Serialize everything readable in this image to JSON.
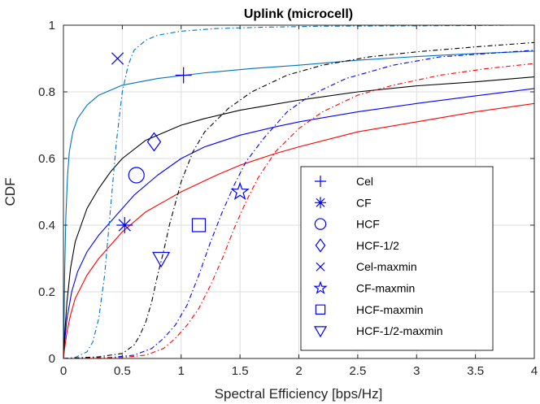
{
  "chart_data": {
    "type": "line",
    "title": "Uplink (microcell)",
    "xlabel": "Spectral Efficiency [bps/Hz]",
    "ylabel": "CDF",
    "xlim": [
      0,
      4
    ],
    "ylim": [
      0,
      1
    ],
    "xticks": [
      0,
      0.5,
      1,
      1.5,
      2,
      2.5,
      3,
      3.5,
      4
    ],
    "xtick_labels": [
      "0",
      "0.5",
      "1",
      "1.5",
      "2",
      "2.5",
      "3",
      "3.5",
      "4"
    ],
    "yticks": [
      0,
      0.2,
      0.4,
      0.6,
      0.8,
      1
    ],
    "ytick_labels": [
      "0",
      "0.2",
      "0.4",
      "0.6",
      "0.8",
      "1"
    ],
    "grid": true,
    "legend_position": "lower-right",
    "legend": [
      {
        "label": "Cel",
        "marker": "plus"
      },
      {
        "label": "CF",
        "marker": "asterisk"
      },
      {
        "label": "HCF",
        "marker": "circle"
      },
      {
        "label": "HCF-1/2",
        "marker": "diamond"
      },
      {
        "label": "Cel-maxmin",
        "marker": "x"
      },
      {
        "label": "CF-maxmin",
        "marker": "star"
      },
      {
        "label": "HCF-maxmin",
        "marker": "square"
      },
      {
        "label": "HCF-1/2-maxmin",
        "marker": "triangle-down"
      }
    ],
    "series": [
      {
        "name": "Cel",
        "color": "#0072bd",
        "dash": "solid",
        "points": [
          [
            0,
            0
          ],
          [
            0.005,
            0.1
          ],
          [
            0.01,
            0.25
          ],
          [
            0.02,
            0.42
          ],
          [
            0.035,
            0.55
          ],
          [
            0.05,
            0.62
          ],
          [
            0.08,
            0.68
          ],
          [
            0.12,
            0.72
          ],
          [
            0.2,
            0.76
          ],
          [
            0.3,
            0.79
          ],
          [
            0.5,
            0.82
          ],
          [
            0.8,
            0.84
          ],
          [
            1.2,
            0.857
          ],
          [
            1.6,
            0.87
          ],
          [
            2.0,
            0.88
          ],
          [
            2.5,
            0.895
          ],
          [
            3.0,
            0.906
          ],
          [
            3.5,
            0.915
          ],
          [
            4.0,
            0.922
          ]
        ],
        "marker": {
          "type": "plus",
          "x": 1.02,
          "y": 0.85
        }
      },
      {
        "name": "CF",
        "color": "#0000ff",
        "dash": "solid",
        "points": [
          [
            0,
            0
          ],
          [
            0.01,
            0.05
          ],
          [
            0.03,
            0.12
          ],
          [
            0.07,
            0.2
          ],
          [
            0.12,
            0.26
          ],
          [
            0.2,
            0.32
          ],
          [
            0.3,
            0.37
          ],
          [
            0.4,
            0.41
          ],
          [
            0.5,
            0.45
          ],
          [
            0.6,
            0.49
          ],
          [
            0.8,
            0.55
          ],
          [
            1.0,
            0.6
          ],
          [
            1.2,
            0.635
          ],
          [
            1.5,
            0.67
          ],
          [
            1.8,
            0.695
          ],
          [
            2.0,
            0.71
          ],
          [
            2.5,
            0.74
          ],
          [
            3.0,
            0.765
          ],
          [
            3.5,
            0.788
          ],
          [
            4.0,
            0.81
          ]
        ],
        "marker": {
          "type": "asterisk",
          "x": 0.52,
          "y": 0.4
        }
      },
      {
        "name": "HCF",
        "color": "#000000",
        "dash": "solid",
        "points": [
          [
            0,
            0
          ],
          [
            0.01,
            0.07
          ],
          [
            0.03,
            0.17
          ],
          [
            0.06,
            0.27
          ],
          [
            0.1,
            0.35
          ],
          [
            0.2,
            0.45
          ],
          [
            0.3,
            0.51
          ],
          [
            0.4,
            0.56
          ],
          [
            0.5,
            0.6
          ],
          [
            0.7,
            0.655
          ],
          [
            1.0,
            0.7
          ],
          [
            1.2,
            0.72
          ],
          [
            1.5,
            0.745
          ],
          [
            2.0,
            0.775
          ],
          [
            2.5,
            0.8
          ],
          [
            3.0,
            0.818
          ],
          [
            3.5,
            0.83
          ],
          [
            4.0,
            0.845
          ]
        ],
        "marker": {
          "type": "circle",
          "x": 0.62,
          "y": 0.55
        }
      },
      {
        "name": "HCF-1/2",
        "color": "#ff0000",
        "dash": "solid",
        "points": [
          [
            0,
            0
          ],
          [
            0.01,
            0.03
          ],
          [
            0.03,
            0.08
          ],
          [
            0.06,
            0.13
          ],
          [
            0.1,
            0.18
          ],
          [
            0.2,
            0.25
          ],
          [
            0.3,
            0.3
          ],
          [
            0.4,
            0.34
          ],
          [
            0.5,
            0.38
          ],
          [
            0.7,
            0.44
          ],
          [
            0.9,
            0.48
          ],
          [
            1.0,
            0.5
          ],
          [
            1.3,
            0.55
          ],
          [
            1.5,
            0.58
          ],
          [
            1.8,
            0.615
          ],
          [
            2.0,
            0.635
          ],
          [
            2.5,
            0.68
          ],
          [
            3.0,
            0.71
          ],
          [
            3.5,
            0.74
          ],
          [
            4.0,
            0.765
          ]
        ],
        "marker": {
          "type": "diamond",
          "x": 0.77,
          "y": 0.65
        }
      },
      {
        "name": "Cel-maxmin",
        "color": "#0072bd",
        "dash": "dashdot",
        "points": [
          [
            0,
            0
          ],
          [
            0.1,
            0.003
          ],
          [
            0.2,
            0.02
          ],
          [
            0.25,
            0.05
          ],
          [
            0.3,
            0.12
          ],
          [
            0.35,
            0.25
          ],
          [
            0.4,
            0.45
          ],
          [
            0.45,
            0.65
          ],
          [
            0.5,
            0.8
          ],
          [
            0.55,
            0.88
          ],
          [
            0.6,
            0.925
          ],
          [
            0.7,
            0.955
          ],
          [
            0.8,
            0.97
          ],
          [
            1.0,
            0.982
          ],
          [
            1.3,
            0.99
          ],
          [
            1.7,
            0.994
          ],
          [
            2.2,
            0.997
          ],
          [
            3.0,
            0.998
          ],
          [
            3.5,
            0.999
          ],
          [
            3.85,
            1.0
          ]
        ],
        "marker": {
          "type": "x",
          "x": 0.46,
          "y": 0.9
        }
      },
      {
        "name": "CF-maxmin",
        "color": "#0000ff",
        "dash": "dashdot",
        "points": [
          [
            0,
            0
          ],
          [
            0.4,
            0.003
          ],
          [
            0.6,
            0.01
          ],
          [
            0.75,
            0.03
          ],
          [
            0.85,
            0.06
          ],
          [
            0.95,
            0.1
          ],
          [
            1.05,
            0.16
          ],
          [
            1.15,
            0.25
          ],
          [
            1.25,
            0.35
          ],
          [
            1.35,
            0.44
          ],
          [
            1.45,
            0.52
          ],
          [
            1.55,
            0.59
          ],
          [
            1.7,
            0.66
          ],
          [
            1.9,
            0.74
          ],
          [
            2.1,
            0.79
          ],
          [
            2.4,
            0.84
          ],
          [
            2.8,
            0.88
          ],
          [
            3.2,
            0.905
          ],
          [
            3.6,
            0.915
          ],
          [
            4.0,
            0.925
          ]
        ],
        "marker": {
          "type": "star",
          "x": 1.5,
          "y": 0.5
        }
      },
      {
        "name": "HCF-maxmin",
        "color": "#ff0000",
        "dash": "dashdot",
        "points": [
          [
            0,
            0
          ],
          [
            0.5,
            0.003
          ],
          [
            0.7,
            0.01
          ],
          [
            0.85,
            0.03
          ],
          [
            0.95,
            0.06
          ],
          [
            1.05,
            0.1
          ],
          [
            1.15,
            0.15
          ],
          [
            1.25,
            0.22
          ],
          [
            1.35,
            0.3
          ],
          [
            1.45,
            0.39
          ],
          [
            1.55,
            0.47
          ],
          [
            1.65,
            0.54
          ],
          [
            1.8,
            0.62
          ],
          [
            2.0,
            0.69
          ],
          [
            2.2,
            0.74
          ],
          [
            2.5,
            0.79
          ],
          [
            2.8,
            0.82
          ],
          [
            3.2,
            0.85
          ],
          [
            3.6,
            0.87
          ],
          [
            4.0,
            0.885
          ]
        ],
        "marker": {
          "type": "square",
          "x": 1.15,
          "y": 0.4
        }
      },
      {
        "name": "HCF-1/2-maxmin",
        "color": "#000000",
        "dash": "dashdot",
        "points": [
          [
            0,
            0
          ],
          [
            0.3,
            0.005
          ],
          [
            0.5,
            0.015
          ],
          [
            0.6,
            0.04
          ],
          [
            0.65,
            0.07
          ],
          [
            0.7,
            0.11
          ],
          [
            0.75,
            0.17
          ],
          [
            0.8,
            0.25
          ],
          [
            0.85,
            0.32
          ],
          [
            0.9,
            0.4
          ],
          [
            1.0,
            0.53
          ],
          [
            1.1,
            0.62
          ],
          [
            1.2,
            0.68
          ],
          [
            1.4,
            0.75
          ],
          [
            1.6,
            0.8
          ],
          [
            1.9,
            0.85
          ],
          [
            2.2,
            0.88
          ],
          [
            2.6,
            0.905
          ],
          [
            3.0,
            0.92
          ],
          [
            3.5,
            0.935
          ],
          [
            4.0,
            0.948
          ]
        ],
        "marker": {
          "type": "triangle-down",
          "x": 0.83,
          "y": 0.3
        }
      }
    ]
  }
}
